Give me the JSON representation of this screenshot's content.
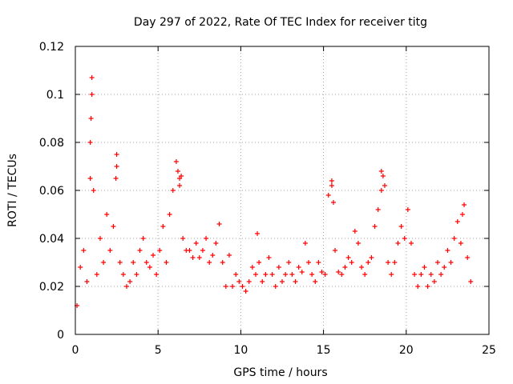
{
  "chart_data": {
    "type": "scatter",
    "title": "Day 297 of 2022, Rate Of TEC Index for receiver titg",
    "xlabel": "GPS time / hours",
    "ylabel": "ROTI / TECUs",
    "xlim": [
      0,
      25
    ],
    "ylim": [
      0,
      0.12
    ],
    "xticks": [
      0,
      5,
      10,
      15,
      20,
      25
    ],
    "yticks": [
      0,
      0.02,
      0.04,
      0.06,
      0.08,
      0.1,
      0.12
    ],
    "xtick_labels": [
      "0",
      "5",
      "10",
      "15",
      "20",
      "25"
    ],
    "ytick_labels": [
      "0",
      "0.02",
      "0.04",
      "0.06",
      "0.08",
      "0.1",
      "0.12"
    ],
    "grid": true,
    "marker": "+",
    "color": "#ff0000",
    "series": [
      {
        "name": "ROTI",
        "x": [
          0.1,
          0.3,
          0.5,
          0.7,
          0.9,
          1.0,
          1.1,
          1.3,
          1.5,
          1.7,
          1.9,
          2.1,
          2.3,
          2.5,
          2.7,
          2.9,
          3.1,
          3.3,
          3.5,
          3.7,
          3.9,
          4.1,
          4.3,
          4.5,
          4.7,
          4.9,
          5.1,
          5.3,
          5.5,
          5.7,
          5.9,
          6.1,
          6.3,
          6.5,
          6.7,
          6.9,
          7.1,
          7.3,
          7.5,
          7.7,
          7.9,
          8.1,
          8.3,
          8.5,
          8.7,
          8.9,
          9.1,
          9.3,
          9.5,
          9.7,
          9.9,
          10.1,
          10.3,
          10.5,
          10.7,
          10.9,
          11.1,
          11.3,
          11.5,
          11.7,
          11.9,
          12.1,
          12.3,
          12.5,
          12.7,
          12.9,
          13.1,
          13.3,
          13.5,
          13.7,
          13.9,
          14.1,
          14.3,
          14.5,
          14.7,
          14.9,
          15.1,
          15.3,
          15.5,
          15.7,
          15.9,
          16.1,
          16.3,
          16.5,
          16.7,
          16.9,
          17.1,
          17.3,
          17.5,
          17.7,
          17.9,
          18.1,
          18.3,
          18.5,
          18.7,
          18.9,
          19.1,
          19.3,
          19.5,
          19.7,
          19.9,
          20.1,
          20.3,
          20.5,
          20.7,
          20.9,
          21.1,
          21.3,
          21.5,
          21.7,
          21.9,
          22.1,
          22.3,
          22.5,
          22.7,
          22.9,
          23.1,
          23.3,
          23.5,
          23.7,
          23.9,
          0.95,
          1.0,
          0.9,
          2.5,
          2.45,
          6.2,
          6.3,
          6.4,
          15.5,
          15.6,
          18.5,
          18.6,
          23.4,
          11.0
        ],
        "y": [
          0.012,
          0.028,
          0.035,
          0.022,
          0.065,
          0.107,
          0.06,
          0.025,
          0.04,
          0.03,
          0.05,
          0.035,
          0.045,
          0.075,
          0.03,
          0.025,
          0.02,
          0.022,
          0.03,
          0.025,
          0.035,
          0.04,
          0.03,
          0.028,
          0.033,
          0.025,
          0.035,
          0.045,
          0.03,
          0.05,
          0.06,
          0.072,
          0.065,
          0.04,
          0.035,
          0.035,
          0.032,
          0.038,
          0.032,
          0.035,
          0.04,
          0.03,
          0.033,
          0.038,
          0.046,
          0.03,
          0.02,
          0.033,
          0.02,
          0.025,
          0.022,
          0.02,
          0.018,
          0.022,
          0.028,
          0.025,
          0.03,
          0.022,
          0.025,
          0.032,
          0.025,
          0.02,
          0.028,
          0.022,
          0.025,
          0.03,
          0.025,
          0.022,
          0.028,
          0.026,
          0.038,
          0.03,
          0.025,
          0.022,
          0.03,
          0.026,
          0.025,
          0.058,
          0.064,
          0.035,
          0.026,
          0.025,
          0.028,
          0.032,
          0.03,
          0.043,
          0.038,
          0.028,
          0.025,
          0.03,
          0.032,
          0.045,
          0.052,
          0.068,
          0.062,
          0.03,
          0.025,
          0.03,
          0.038,
          0.045,
          0.04,
          0.052,
          0.038,
          0.025,
          0.02,
          0.025,
          0.028,
          0.02,
          0.025,
          0.022,
          0.03,
          0.025,
          0.028,
          0.035,
          0.03,
          0.04,
          0.047,
          0.038,
          0.054,
          0.032,
          0.022,
          0.09,
          0.1,
          0.08,
          0.07,
          0.065,
          0.068,
          0.062,
          0.066,
          0.062,
          0.055,
          0.06,
          0.066,
          0.05,
          0.042
        ]
      }
    ]
  }
}
